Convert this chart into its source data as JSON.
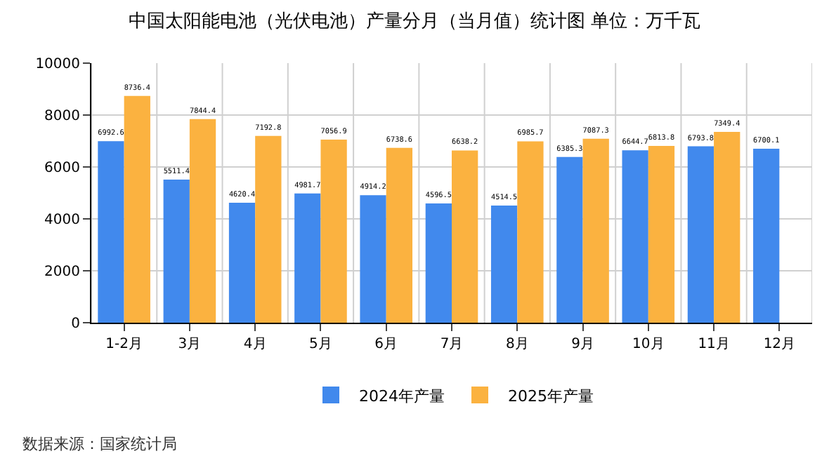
{
  "chart_data": {
    "type": "bar",
    "title": "中国太阳能电池（光伏电池）产量分月（当月值）统计图 单位：万千瓦",
    "categories": [
      "1-2月",
      "3月",
      "4月",
      "5月",
      "6月",
      "7月",
      "8月",
      "9月",
      "10月",
      "11月",
      "12月"
    ],
    "series": [
      {
        "name": "2024年产量",
        "color": "#4189ed",
        "values": [
          6992.6,
          5511.4,
          4620.4,
          4981.7,
          4914.2,
          4596.5,
          4514.5,
          6385.3,
          6644.7,
          6793.8,
          6700.1
        ]
      },
      {
        "name": "2025年产量",
        "color": "#fbb240",
        "values": [
          8736.4,
          7844.4,
          7192.8,
          7056.9,
          6738.6,
          6638.2,
          6985.7,
          7087.3,
          6813.8,
          7349.4,
          null
        ]
      }
    ],
    "ylim": [
      0,
      10000
    ],
    "yticks": [
      0,
      2000,
      4000,
      6000,
      8000,
      10000
    ],
    "grid": true,
    "legend": "bottom",
    "data_labels": true,
    "annotations": [
      "数据来源：国家统计局"
    ]
  }
}
